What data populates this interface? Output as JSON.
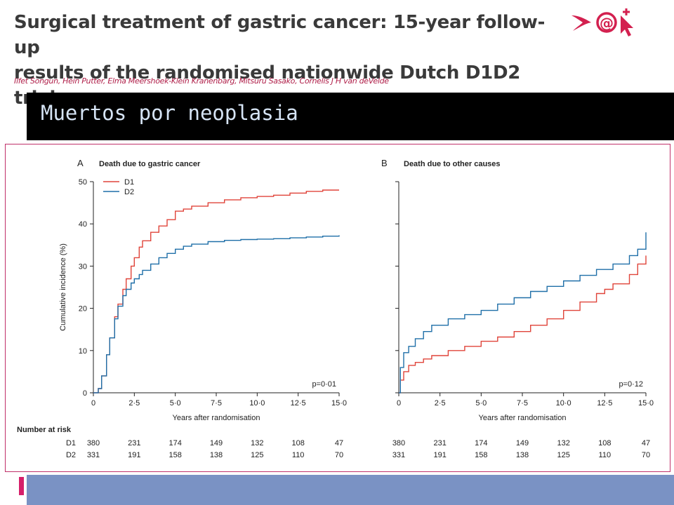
{
  "paper": {
    "title_line1": "Surgical treatment of gastric cancer: 15-year follow-up",
    "title_line2": "results of the randomised nationwide Dutch D1D2 trial",
    "authors": "Ilfet Songun, Hein Putter, Elma Meershoek-Klein Kranenbarg, Mitsuru Sasako, Cornelis J H van deVelde"
  },
  "logo": {
    "icon_name": "bird-and-@-cursor-logo",
    "text": "@"
  },
  "slide": {
    "title": "Muertos por neoplasia"
  },
  "colors": {
    "d1": "#e0443a",
    "d2": "#1f6fa8",
    "frame": "#c0306a",
    "banner": "#000000",
    "footer": "#7a92c4",
    "footer_accent": "#d6206a"
  },
  "chart_data": [
    {
      "type": "line",
      "panel_letter": "A",
      "title": "Death due to gastric cancer",
      "xlabel": "Years after randomisation",
      "ylabel": "Cumulative incidence (%)",
      "xlim": [
        0,
        15
      ],
      "ylim": [
        0,
        50
      ],
      "x_ticks": [
        "0",
        "2·5",
        "5·0",
        "7·5",
        "10·0",
        "12·5",
        "15·0"
      ],
      "y_ticks": [
        "0",
        "10",
        "20",
        "30",
        "40",
        "50"
      ],
      "legend": {
        "placement": "top-left",
        "entries": [
          "D1",
          "D2"
        ]
      },
      "annotation": "p=0·01",
      "series": [
        {
          "name": "D1",
          "color": "#e0443a",
          "x": [
            0,
            0.3,
            0.5,
            0.8,
            1.0,
            1.3,
            1.5,
            1.8,
            2.0,
            2.3,
            2.5,
            2.8,
            3.0,
            3.5,
            4.0,
            4.5,
            5.0,
            5.5,
            6.0,
            7.0,
            8.0,
            9.0,
            10.0,
            11.0,
            12.0,
            13.0,
            14.0,
            15.0
          ],
          "y": [
            0,
            1,
            4,
            9,
            13,
            18,
            21,
            24.5,
            27,
            30,
            32,
            34.5,
            36,
            38,
            39.5,
            41,
            43,
            43.5,
            44.2,
            45,
            45.7,
            46.2,
            46.5,
            46.8,
            47.3,
            47.7,
            48,
            48
          ]
        },
        {
          "name": "D2",
          "color": "#1f6fa8",
          "x": [
            0,
            0.3,
            0.5,
            0.8,
            1.0,
            1.3,
            1.5,
            1.8,
            2.0,
            2.3,
            2.5,
            2.8,
            3.0,
            3.5,
            4.0,
            4.5,
            5.0,
            5.5,
            6.0,
            7.0,
            8.0,
            9.0,
            10.0,
            11.0,
            12.0,
            13.0,
            14.0,
            15.0
          ],
          "y": [
            0,
            1,
            4,
            9,
            13,
            17.5,
            20.5,
            23,
            24.5,
            26,
            27,
            28,
            29,
            30.5,
            32,
            33,
            34,
            34.7,
            35.2,
            35.8,
            36.1,
            36.3,
            36.4,
            36.5,
            36.7,
            36.9,
            37.1,
            37.3
          ]
        }
      ],
      "number_at_risk": {
        "header": "Number at risk",
        "rows": [
          {
            "label": "D1",
            "values": [
              "380",
              "231",
              "174",
              "149",
              "132",
              "108",
              "47"
            ]
          },
          {
            "label": "D2",
            "values": [
              "331",
              "191",
              "158",
              "138",
              "125",
              "110",
              "70"
            ]
          }
        ]
      }
    },
    {
      "type": "line",
      "panel_letter": "B",
      "title": "Death due to other causes",
      "xlabel": "Years after randomisation",
      "ylabel": "",
      "xlim": [
        0,
        15
      ],
      "ylim": [
        0,
        50
      ],
      "x_ticks": [
        "0",
        "2·5",
        "5·0",
        "7·5",
        "10·0",
        "12·5",
        "15·0"
      ],
      "y_ticks": [],
      "annotation": "p=0·12",
      "series": [
        {
          "name": "D1",
          "color": "#e0443a",
          "x": [
            0,
            0.1,
            0.3,
            0.6,
            1.0,
            1.5,
            2.0,
            3.0,
            4.0,
            5.0,
            6.0,
            7.0,
            8.0,
            9.0,
            10.0,
            11.0,
            12.0,
            12.5,
            13.0,
            14.0,
            14.5,
            15.0
          ],
          "y": [
            0,
            3,
            5,
            6.5,
            7.2,
            8,
            8.8,
            10,
            11,
            12.2,
            13.2,
            14.5,
            16,
            17.5,
            19.5,
            21.5,
            23.5,
            24.5,
            25.8,
            28,
            30.5,
            32.5
          ]
        },
        {
          "name": "D2",
          "color": "#1f6fa8",
          "x": [
            0,
            0.1,
            0.3,
            0.6,
            1.0,
            1.5,
            2.0,
            3.0,
            4.0,
            5.0,
            6.0,
            7.0,
            8.0,
            9.0,
            10.0,
            11.0,
            12.0,
            13.0,
            14.0,
            14.5,
            15.0
          ],
          "y": [
            0,
            6,
            9.5,
            11,
            12.8,
            14.5,
            16,
            17.5,
            18.5,
            19.5,
            21,
            22.5,
            24,
            25.2,
            26.5,
            27.8,
            29.2,
            30.5,
            32.5,
            34,
            38
          ]
        }
      ],
      "number_at_risk": {
        "rows": [
          {
            "label": "D1",
            "values": [
              "380",
              "231",
              "174",
              "149",
              "132",
              "108",
              "47"
            ]
          },
          {
            "label": "D2",
            "values": [
              "331",
              "191",
              "158",
              "138",
              "125",
              "110",
              "70"
            ]
          }
        ]
      }
    }
  ]
}
